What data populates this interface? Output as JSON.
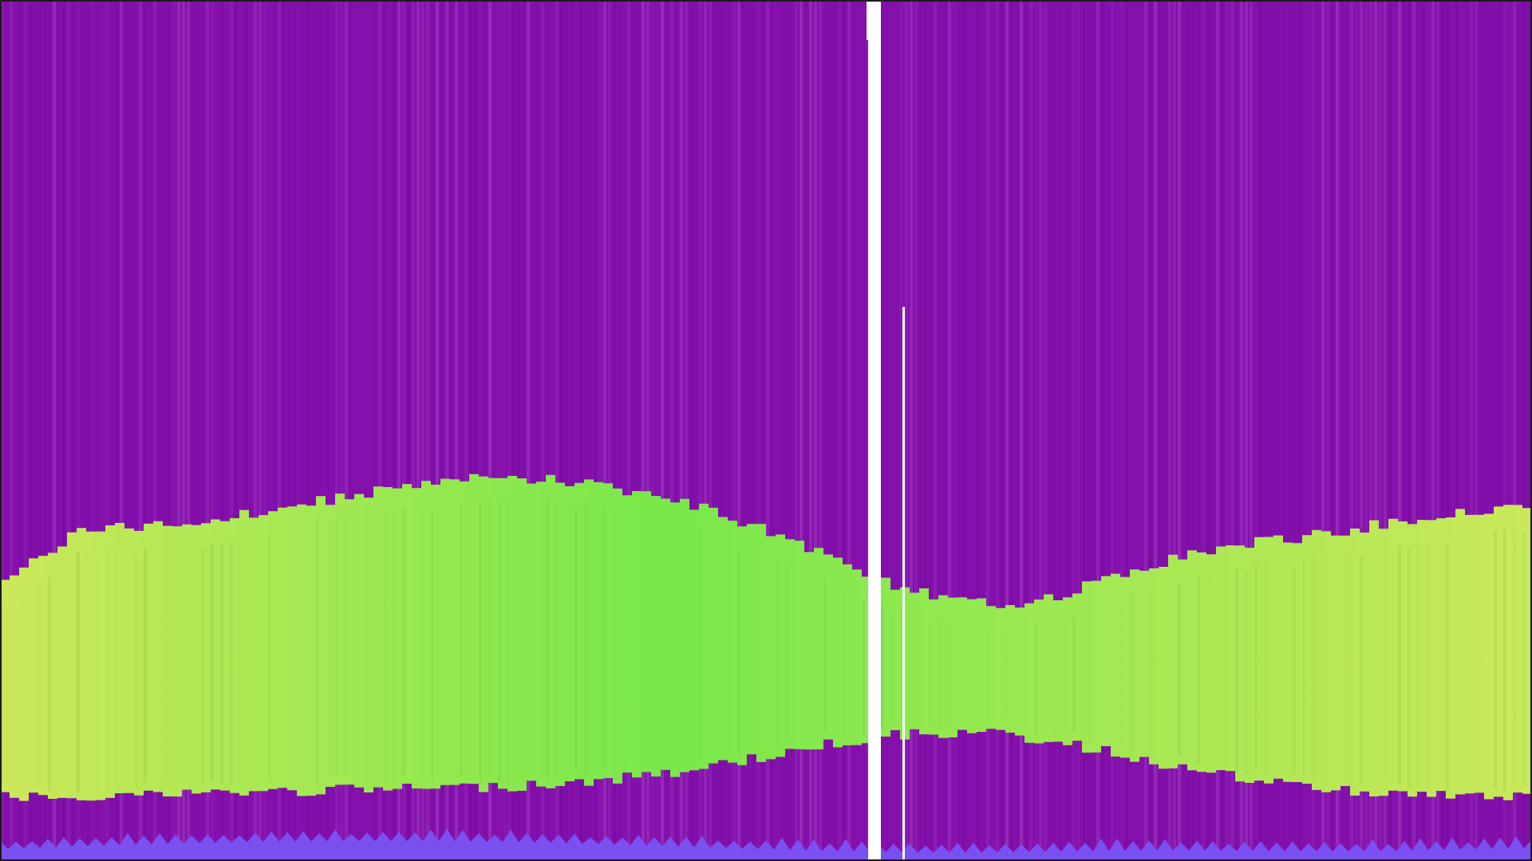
{
  "colors": {
    "background": "#8510ad",
    "band_edge": "#cbe85a",
    "band_center": "#78e84a",
    "wave": "#7a50f0",
    "gap": "#ffffff",
    "frame": "#1a1a1a"
  },
  "visual": {
    "kind": "spectrogram-like color field",
    "text_visible": false
  }
}
